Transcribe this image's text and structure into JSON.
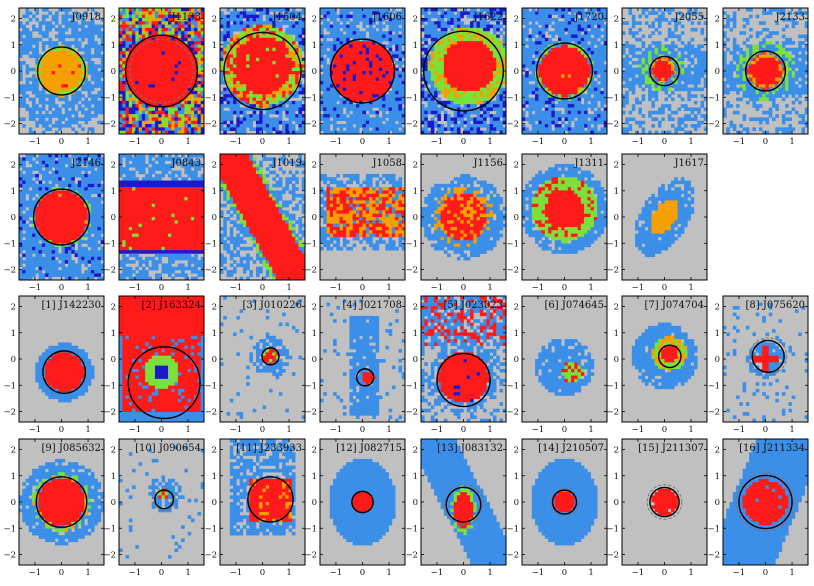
{
  "chart_data": {
    "type": "heatmap",
    "description_grid": "31 map panels arranged in 4 rows of 8 columns; x ticks -1,0,1; y ticks -2..2",
    "axes": {
      "x_ticks": [
        "−1",
        "0",
        "1"
      ],
      "y_ticks": [
        "−2",
        "−1",
        "0",
        "1",
        "2"
      ],
      "xlim": [
        -1.6,
        1.6
      ],
      "ylim": [
        -2.4,
        2.4
      ]
    },
    "colors": {
      "background": "#c0c0c0",
      "light_blue": "#3b8fe8",
      "dark_blue": "#1a1acc",
      "green": "#7be03a",
      "orange": "#f5a000",
      "red": "#ff1a1a"
    },
    "panels": [
      {
        "label": "J0918",
        "row": 0,
        "col": 0,
        "style": "orange-disk",
        "core": [
          0.0,
          0.0,
          0.8
        ],
        "circles": [
          [
            0.0,
            0.0,
            0.9,
            "solid"
          ]
        ]
      },
      {
        "label": "J1133",
        "row": 0,
        "col": 1,
        "style": "red-full",
        "core": [
          0.0,
          0.0,
          1.4
        ],
        "circles": [
          [
            0.0,
            0.0,
            1.35,
            "solid"
          ],
          [
            0.0,
            0.0,
            1.2,
            "dashed"
          ]
        ]
      },
      {
        "label": "J1504",
        "row": 0,
        "col": 2,
        "style": "red-green",
        "core": [
          0.0,
          0.2,
          1.1
        ],
        "circles": [
          [
            0.0,
            0.0,
            1.45,
            "solid"
          ]
        ]
      },
      {
        "label": "J1606",
        "row": 0,
        "col": 3,
        "style": "red-blue",
        "core": [
          0.0,
          0.0,
          1.2
        ],
        "circles": [
          [
            0.0,
            0.0,
            1.2,
            "solid"
          ]
        ]
      },
      {
        "label": "J1622",
        "row": 0,
        "col": 4,
        "style": "red-green-halo",
        "core": [
          0.2,
          0.2,
          1.0
        ],
        "circles": [
          [
            0.0,
            0.0,
            1.5,
            "solid"
          ]
        ]
      },
      {
        "label": "J1720",
        "row": 0,
        "col": 5,
        "style": "red-disk",
        "core": [
          0.0,
          0.0,
          0.95
        ],
        "circles": [
          [
            0.0,
            0.0,
            1.05,
            "solid"
          ]
        ]
      },
      {
        "label": "J2055",
        "row": 0,
        "col": 6,
        "style": "small-red",
        "core": [
          -0.1,
          0.1,
          0.45
        ],
        "circles": [
          [
            0.0,
            0.0,
            0.55,
            "solid"
          ],
          [
            0.0,
            0.0,
            0.45,
            "dashed"
          ]
        ]
      },
      {
        "label": "J2133",
        "row": 0,
        "col": 7,
        "style": "small-red",
        "core": [
          0.0,
          0.0,
          0.7
        ],
        "circles": [
          [
            0.0,
            0.0,
            0.75,
            "solid"
          ],
          [
            0.0,
            0.0,
            0.65,
            "dashed"
          ]
        ]
      },
      {
        "label": "J2146",
        "row": 1,
        "col": 0,
        "style": "red-disk",
        "core": [
          0.0,
          0.0,
          1.0
        ],
        "circles": [
          [
            0.0,
            0.0,
            1.05,
            "solid"
          ]
        ]
      },
      {
        "label": "J0843",
        "row": 1,
        "col": 1,
        "style": "red-band",
        "core": [
          0.0,
          0.0,
          1.2
        ],
        "circles": []
      },
      {
        "label": "J1019",
        "row": 1,
        "col": 2,
        "style": "red-diag",
        "core": [
          0.0,
          0.0,
          1.0
        ],
        "circles": []
      },
      {
        "label": "J1058",
        "row": 1,
        "col": 3,
        "style": "orange-band",
        "core": [
          0.0,
          0.3,
          1.0
        ],
        "circles": []
      },
      {
        "label": "J1156",
        "row": 1,
        "col": 4,
        "style": "red-orange-blob",
        "core": [
          0.0,
          0.0,
          0.9
        ],
        "circles": []
      },
      {
        "label": "J1311",
        "row": 1,
        "col": 5,
        "style": "red-green-blob",
        "core": [
          0.0,
          0.3,
          0.9
        ],
        "circles": []
      },
      {
        "label": "J1617",
        "row": 1,
        "col": 6,
        "style": "orange-ellipse",
        "core": [
          0.0,
          0.0,
          0.7
        ],
        "circles": []
      },
      {
        "label": "[1] J142230",
        "row": 2,
        "col": 0,
        "style": "red-disk-grey",
        "core": [
          0.1,
          -0.5,
          0.75
        ],
        "circles": [
          [
            0.1,
            -0.5,
            0.8,
            "solid"
          ]
        ]
      },
      {
        "label": "[2] J163324",
        "row": 2,
        "col": 1,
        "style": "red-top-green",
        "core": [
          0.0,
          -0.5,
          1.2
        ],
        "circles": [
          [
            0.1,
            -0.9,
            1.35,
            "solid"
          ]
        ]
      },
      {
        "label": "[3] J010226",
        "row": 2,
        "col": 2,
        "style": "tiny-red",
        "core": [
          0.3,
          0.1,
          0.3
        ],
        "circles": [
          [
            0.3,
            0.1,
            0.32,
            "solid"
          ]
        ]
      },
      {
        "label": "[4] J021708",
        "row": 2,
        "col": 3,
        "style": "tiny-red-vertical",
        "core": [
          0.2,
          -0.7,
          0.25
        ],
        "circles": [
          [
            0.1,
            -0.7,
            0.32,
            "solid"
          ]
        ]
      },
      {
        "label": "[5] J023023",
        "row": 2,
        "col": 4,
        "style": "red-disk-patchy",
        "core": [
          0.0,
          -0.7,
          0.95
        ],
        "circles": [
          [
            0.0,
            -0.8,
            1.0,
            "solid"
          ]
        ]
      },
      {
        "label": "[6] J074645",
        "row": 2,
        "col": 5,
        "style": "small-red-green",
        "core": [
          0.3,
          -0.5,
          0.4
        ],
        "circles": []
      },
      {
        "label": "[7] J074704",
        "row": 2,
        "col": 6,
        "style": "small-red-green-orange",
        "core": [
          0.2,
          0.2,
          0.35
        ],
        "circles": [
          [
            0.2,
            0.1,
            0.42,
            "solid"
          ]
        ]
      },
      {
        "label": "[8] J075620",
        "row": 2,
        "col": 7,
        "style": "cross-red",
        "core": [
          0.0,
          0.0,
          0.45
        ],
        "circles": [
          [
            0.1,
            0.1,
            0.6,
            "solid"
          ],
          [
            0.1,
            0.1,
            0.7,
            "dashed"
          ]
        ]
      },
      {
        "label": "[9] J085632",
        "row": 3,
        "col": 0,
        "style": "red-disk-rim",
        "core": [
          0.0,
          0.0,
          0.9
        ],
        "circles": [
          [
            0.0,
            0.0,
            0.95,
            "solid"
          ]
        ]
      },
      {
        "label": "[10] J090654",
        "row": 3,
        "col": 1,
        "style": "tiny-red",
        "core": [
          0.1,
          0.3,
          0.2
        ],
        "circles": [
          [
            0.1,
            0.1,
            0.35,
            "solid"
          ],
          [
            0.1,
            0.1,
            0.42,
            "dashed"
          ]
        ]
      },
      {
        "label": "[11] J233933",
        "row": 3,
        "col": 2,
        "style": "red-orange-square",
        "core": [
          0.3,
          0.1,
          0.7
        ],
        "circles": [
          [
            0.3,
            0.1,
            0.85,
            "solid"
          ]
        ]
      },
      {
        "label": "[12] J082715",
        "row": 3,
        "col": 3,
        "style": "small-red-blue",
        "core": [
          0.0,
          0.0,
          0.38
        ],
        "circles": [
          [
            0.0,
            0.0,
            0.4,
            "solid"
          ]
        ]
      },
      {
        "label": "[13] J083132",
        "row": 3,
        "col": 4,
        "style": "red-elong",
        "core": [
          0.0,
          -0.3,
          0.5
        ],
        "circles": [
          [
            0.0,
            -0.1,
            0.65,
            "solid"
          ],
          [
            0.0,
            -0.1,
            0.75,
            "dashed"
          ]
        ]
      },
      {
        "label": "[14] J210507",
        "row": 3,
        "col": 5,
        "style": "small-red-blue",
        "core": [
          0.0,
          0.0,
          0.4
        ],
        "circles": [
          [
            0.0,
            0.0,
            0.45,
            "solid"
          ],
          [
            0.0,
            0.0,
            0.52,
            "dashed"
          ]
        ]
      },
      {
        "label": "[15] J211307",
        "row": 3,
        "col": 6,
        "style": "red-grey",
        "core": [
          0.0,
          0.0,
          0.5
        ],
        "circles": [
          [
            0.0,
            0.0,
            0.55,
            "solid"
          ],
          [
            0.0,
            0.0,
            0.65,
            "dashed"
          ]
        ]
      },
      {
        "label": "[16] J211334",
        "row": 3,
        "col": 7,
        "style": "red-blue-big",
        "core": [
          0.0,
          0.0,
          0.85
        ],
        "circles": [
          [
            0.0,
            0.0,
            1.0,
            "solid"
          ],
          [
            0.0,
            0.0,
            1.1,
            "dashed"
          ]
        ]
      }
    ]
  }
}
